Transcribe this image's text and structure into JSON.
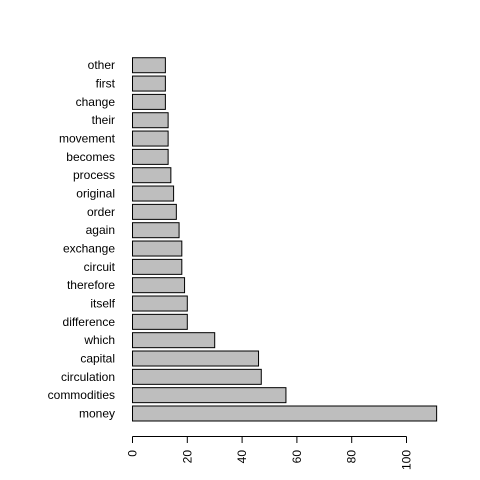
{
  "chart_data": {
    "type": "bar",
    "orientation": "horizontal",
    "categories": [
      "money",
      "commodities",
      "circulation",
      "capital",
      "which",
      "difference",
      "itself",
      "therefore",
      "circuit",
      "exchange",
      "again",
      "order",
      "original",
      "process",
      "becomes",
      "movement",
      "their",
      "change",
      "first",
      "other"
    ],
    "values": [
      111,
      56,
      47,
      46,
      30,
      20,
      20,
      19,
      18,
      18,
      17,
      16,
      15,
      14,
      13,
      13,
      13,
      12,
      12,
      12
    ],
    "xlim": [
      0,
      111
    ],
    "xticks": [
      0,
      20,
      40,
      60,
      80,
      100
    ],
    "title": "",
    "xlabel": "",
    "ylabel": "",
    "grid": false,
    "bar_color": "#bebebe",
    "bar_border_color": "#000000"
  }
}
